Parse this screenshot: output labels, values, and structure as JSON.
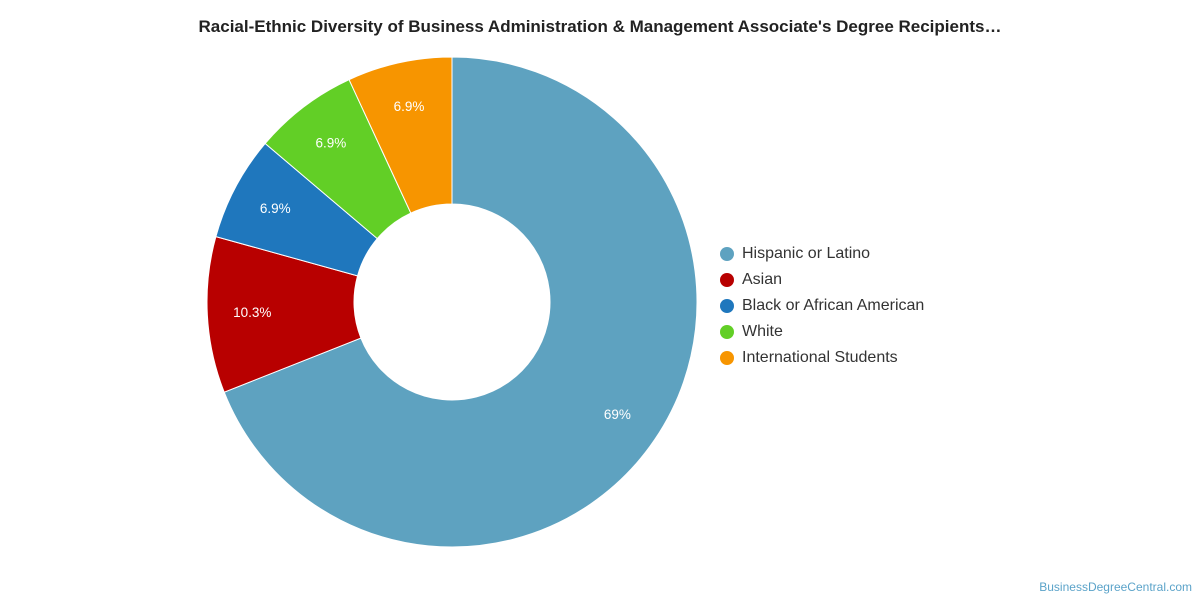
{
  "chart_data": {
    "type": "pie",
    "title": "Racial-Ethnic Diversity of Business Administration & Management Associate's Degree Recipients…",
    "donut": true,
    "legend_position": "right",
    "slices": [
      {
        "label": "Hispanic or Latino",
        "value": 69,
        "display": "69%",
        "color": "#5ea2c0"
      },
      {
        "label": "Asian",
        "value": 10.3,
        "display": "10.3%",
        "color": "#b80000"
      },
      {
        "label": "Black or African American",
        "value": 6.9,
        "display": "6.9%",
        "color": "#1f77bd"
      },
      {
        "label": "White",
        "value": 6.9,
        "display": "6.9%",
        "color": "#62cf26"
      },
      {
        "label": "International Students",
        "value": 6.9,
        "display": "6.9%",
        "color": "#f79500"
      }
    ]
  },
  "footer": {
    "credit": "BusinessDegreeCentral.com"
  }
}
